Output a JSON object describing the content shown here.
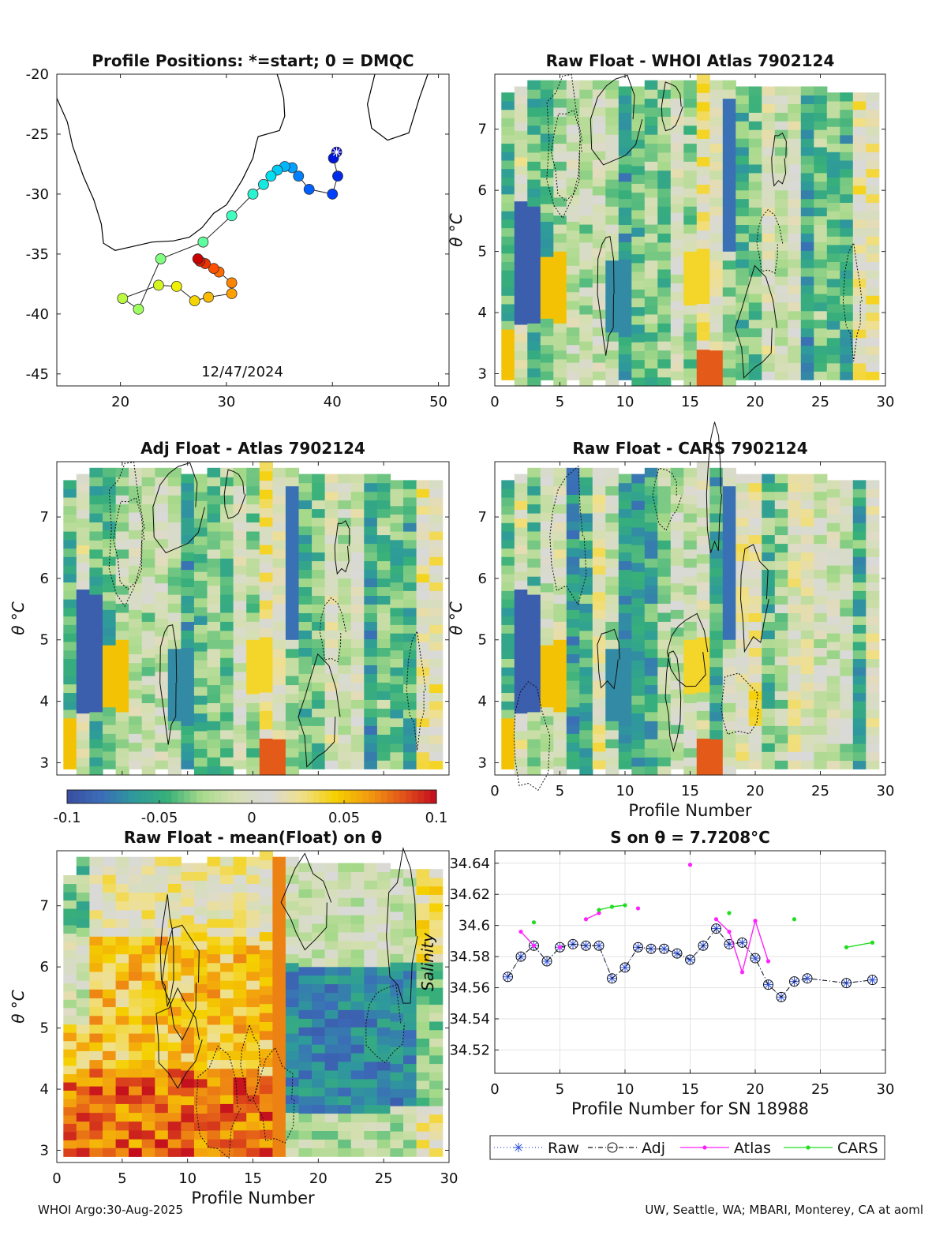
{
  "footer": {
    "left": "WHOI Argo:30-Aug-2025",
    "right": "UW, Seattle, WA; MBARI, Monterey, CA at aoml"
  },
  "colors": {
    "raw": "#3355dd",
    "adj": "#111111",
    "atlas": "#ff22ff",
    "cars": "#22dd22",
    "map_line": "#000000"
  },
  "colormap_stops": [
    "#3a4d9f",
    "#3b6cb8",
    "#2e9a9b",
    "#38b07a",
    "#a6d98a",
    "#d6dfb2",
    "#d9d9d9",
    "#f0e08a",
    "#f5d000",
    "#f29a10",
    "#e2541a",
    "#c20a1e"
  ],
  "chart_data": [
    {
      "id": "map",
      "type": "scatter",
      "title": "Profile Positions: *=start; 0 = DMQC",
      "annotation": "12/47/2024",
      "xlim": [
        14,
        51
      ],
      "ylim": [
        -46,
        -20
      ],
      "xticks": [
        20,
        30,
        40,
        50
      ],
      "yticks": [
        -20,
        -25,
        -30,
        -35,
        -40,
        -45
      ],
      "xtick_labels": [
        "20",
        "30",
        "40",
        "50"
      ],
      "ytick_labels": [
        "-20",
        "-25",
        "-30",
        "-35",
        "-40",
        "-45"
      ],
      "track_lon": [
        40.4,
        40.1,
        40.5,
        40.0,
        37.8,
        36.8,
        36.2,
        35.5,
        34.8,
        34.2,
        33.5,
        32.5,
        30.5,
        27.8,
        23.8,
        21.7,
        20.2,
        23.6,
        25.3,
        27.0,
        28.3,
        30.5,
        30.5,
        29.3,
        28.8,
        28.0,
        27.5,
        27.3
      ],
      "track_lat": [
        -26.5,
        -27.0,
        -28.5,
        -30.0,
        -29.6,
        -28.5,
        -27.8,
        -27.7,
        -28.0,
        -28.5,
        -29.2,
        -30.0,
        -31.8,
        -34.0,
        -35.4,
        -39.6,
        -38.7,
        -37.6,
        -37.7,
        -38.9,
        -38.6,
        -38.3,
        -37.4,
        -36.5,
        -36.2,
        -35.8,
        -35.6,
        -35.4
      ],
      "start_index": 0
    },
    {
      "id": "raw_whoi",
      "type": "heatmap",
      "title": "Raw Float - WHOI Atlas  7902124",
      "xlim": [
        0,
        30
      ],
      "ylim": [
        2.8,
        7.9
      ],
      "xticks": [
        0,
        5,
        10,
        15,
        20,
        25,
        30
      ],
      "yticks": [
        3,
        4,
        5,
        6,
        7
      ],
      "xtick_labels": [
        "0",
        "5",
        "10",
        "15",
        "20",
        "25",
        "30"
      ],
      "ytick_labels": [
        "3",
        "4",
        "5",
        "6",
        "7"
      ],
      "ylabel": "θ °C",
      "xlabel": "",
      "clim": [
        -0.1,
        0.1
      ],
      "profiles": 29,
      "seed": 11,
      "top_theta": [
        7.6,
        7.7,
        7.8,
        7.8,
        7.8,
        7.8,
        7.8,
        7.8,
        7.8,
        7.7,
        7.7,
        7.8,
        7.8,
        7.8,
        7.8,
        7.9,
        7.8,
        7.8,
        7.7,
        7.7,
        7.7,
        7.7,
        7.7,
        7.7,
        7.7,
        7.6,
        7.6,
        7.6,
        7.6
      ],
      "bottom_theta": [
        2.9,
        2.8,
        2.8,
        2.9,
        2.8,
        2.9,
        2.8,
        2.9,
        2.8,
        2.9,
        2.8,
        2.8,
        2.8,
        2.9,
        2.8,
        2.8,
        2.8,
        2.8,
        2.9,
        2.9,
        2.9,
        2.9,
        2.9,
        2.9,
        2.9,
        2.9,
        2.9,
        2.9,
        2.9
      ]
    },
    {
      "id": "adj_atlas",
      "type": "heatmap",
      "title": "Adj Float - Atlas  7902124",
      "xlim": [
        0,
        30
      ],
      "ylim": [
        2.8,
        7.9
      ],
      "xticks": [
        0,
        5,
        10,
        15,
        20,
        25,
        30
      ],
      "yticks": [
        3,
        4,
        5,
        6,
        7
      ],
      "xtick_labels": [],
      "ytick_labels": [
        "3",
        "4",
        "5",
        "6",
        "7"
      ],
      "ylabel": "θ °C",
      "xlabel": "",
      "clim": [
        -0.1,
        0.1
      ],
      "profiles": 29,
      "seed": 11,
      "top_theta": [
        7.6,
        7.7,
        7.8,
        7.8,
        7.8,
        7.8,
        7.8,
        7.8,
        7.8,
        7.7,
        7.7,
        7.8,
        7.8,
        7.8,
        7.8,
        7.9,
        7.8,
        7.8,
        7.7,
        7.7,
        7.7,
        7.7,
        7.7,
        7.7,
        7.7,
        7.6,
        7.6,
        7.6,
        7.6
      ],
      "bottom_theta": [
        2.9,
        2.8,
        2.8,
        2.9,
        2.8,
        2.9,
        2.8,
        2.9,
        2.8,
        2.9,
        2.8,
        2.8,
        2.8,
        2.9,
        2.8,
        2.8,
        2.8,
        2.8,
        2.9,
        2.9,
        2.9,
        2.9,
        2.9,
        2.9,
        2.9,
        2.9,
        2.9,
        2.9,
        2.9
      ]
    },
    {
      "id": "raw_cars",
      "type": "heatmap",
      "title": "Raw Float - CARS  7902124",
      "xlim": [
        0,
        30
      ],
      "ylim": [
        2.8,
        7.9
      ],
      "xticks": [
        0,
        5,
        10,
        15,
        20,
        25,
        30
      ],
      "yticks": [
        3,
        4,
        5,
        6,
        7
      ],
      "xtick_labels": [
        "0",
        "5",
        "10",
        "15",
        "20",
        "25",
        "30"
      ],
      "ytick_labels": [
        "3",
        "4",
        "5",
        "6",
        "7"
      ],
      "ylabel": "θ °C",
      "xlabel": "Profile Number",
      "clim": [
        -0.1,
        0.1
      ],
      "profiles": 29,
      "seed": 23,
      "top_theta": [
        7.6,
        7.7,
        7.8,
        7.8,
        7.8,
        7.8,
        7.8,
        7.8,
        7.8,
        7.7,
        7.7,
        7.8,
        7.8,
        7.8,
        7.8,
        7.9,
        7.8,
        7.8,
        7.7,
        7.7,
        7.7,
        7.7,
        7.7,
        7.7,
        7.7,
        7.6,
        7.6,
        7.6,
        7.6
      ],
      "bottom_theta": [
        2.9,
        2.8,
        2.8,
        2.9,
        2.8,
        2.9,
        2.8,
        2.9,
        2.8,
        2.9,
        2.8,
        2.8,
        2.8,
        2.9,
        2.8,
        2.8,
        2.8,
        2.8,
        2.9,
        2.9,
        2.9,
        2.9,
        2.9,
        2.9,
        2.9,
        2.9,
        2.9,
        2.9,
        2.9
      ]
    },
    {
      "id": "colorbar",
      "type": "heatmap",
      "clim": [
        -0.1,
        0.1
      ],
      "tick_values": [
        -0.1,
        -0.05,
        0,
        0.05,
        0.1
      ],
      "tick_labels": [
        "-0.1",
        "-0.05",
        "0",
        "0.05",
        "0.1"
      ]
    },
    {
      "id": "raw_mean",
      "type": "heatmap",
      "title": "Raw Float - mean(Float) on θ",
      "xlim": [
        0,
        30
      ],
      "ylim": [
        2.8,
        7.9
      ],
      "xticks": [
        0,
        5,
        10,
        15,
        20,
        25,
        30
      ],
      "yticks": [
        3,
        4,
        5,
        6,
        7
      ],
      "xtick_labels": [
        "0",
        "5",
        "10",
        "15",
        "20",
        "25",
        "30"
      ],
      "ytick_labels": [
        "3",
        "4",
        "5",
        "6",
        "7"
      ],
      "ylabel": "θ °C",
      "xlabel": "Profile Number",
      "clim": [
        -0.1,
        0.1
      ],
      "profiles": 29,
      "split_profile": 17.5,
      "seed": 5,
      "top_theta": [
        7.5,
        7.8,
        7.8,
        7.8,
        7.8,
        7.8,
        7.8,
        7.8,
        7.8,
        7.7,
        7.7,
        7.8,
        7.8,
        7.8,
        7.8,
        7.9,
        7.8,
        7.8,
        7.7,
        7.7,
        7.7,
        7.7,
        7.7,
        7.7,
        7.7,
        7.6,
        7.6,
        7.6,
        7.6
      ],
      "bottom_theta": [
        2.9,
        2.9,
        2.9,
        2.9,
        2.9,
        2.9,
        2.9,
        2.9,
        2.9,
        2.9,
        2.9,
        2.9,
        2.9,
        2.9,
        2.9,
        2.9,
        2.9,
        2.9,
        2.9,
        2.9,
        2.9,
        2.9,
        2.9,
        2.9,
        2.9,
        2.9,
        2.9,
        2.9,
        2.9
      ]
    },
    {
      "id": "salinity",
      "type": "line",
      "title": "S on θ = 7.7208°C",
      "xlabel": "Profile Number for SN 18988",
      "ylabel": "Salinity",
      "xlim": [
        0,
        30
      ],
      "ylim": [
        34.505,
        34.648
      ],
      "xticks": [
        0,
        5,
        10,
        15,
        20,
        25,
        30
      ],
      "yticks": [
        34.52,
        34.54,
        34.56,
        34.58,
        34.6,
        34.62,
        34.64
      ],
      "xtick_labels": [
        "0",
        "5",
        "10",
        "15",
        "20",
        "25",
        "30"
      ],
      "ytick_labels": [
        "34.52",
        "34.54",
        "34.56",
        "34.58",
        "34.6",
        "34.62",
        "34.64"
      ],
      "grid": true,
      "legend": [
        "Raw",
        "Adj",
        "Atlas",
        "CARS"
      ],
      "legend_position": "bottom",
      "series": [
        {
          "name": "Raw",
          "x": [
            1,
            2,
            3,
            4,
            5,
            6,
            7,
            8,
            9,
            10,
            11,
            12,
            13,
            14,
            15,
            16,
            17,
            18,
            19,
            20,
            21,
            22,
            23,
            24,
            27,
            29
          ],
          "values": [
            34.567,
            34.58,
            34.587,
            34.577,
            34.586,
            34.588,
            34.587,
            34.587,
            34.566,
            34.573,
            34.586,
            34.585,
            34.585,
            34.582,
            34.578,
            34.587,
            34.598,
            34.588,
            34.589,
            34.579,
            34.562,
            34.554,
            34.564,
            34.566,
            34.563,
            34.565
          ]
        },
        {
          "name": "Adj",
          "x": [
            1,
            2,
            3,
            4,
            5,
            6,
            7,
            8,
            9,
            10,
            11,
            12,
            13,
            14,
            15,
            16,
            17,
            18,
            19,
            20,
            21,
            22,
            23,
            24,
            27,
            29
          ],
          "values": [
            34.567,
            34.58,
            34.587,
            34.577,
            34.586,
            34.588,
            34.587,
            34.587,
            34.566,
            34.573,
            34.586,
            34.585,
            34.585,
            34.582,
            34.578,
            34.587,
            34.598,
            34.588,
            34.589,
            34.579,
            34.562,
            34.554,
            34.564,
            34.566,
            34.563,
            34.565
          ]
        },
        {
          "name": "Atlas",
          "segments": [
            {
              "x": [
                2,
                3
              ],
              "values": [
                34.596,
                34.587
              ]
            },
            {
              "x": [
                5
              ],
              "values": [
                34.586
              ]
            },
            {
              "x": [
                7,
                8
              ],
              "values": [
                34.604,
                34.608
              ]
            },
            {
              "x": [
                11
              ],
              "values": [
                34.611
              ]
            },
            {
              "x": [
                15
              ],
              "values": [
                34.639
              ]
            },
            {
              "x": [
                17,
                18,
                19,
                20,
                21
              ],
              "values": [
                34.604,
                34.596,
                34.57,
                34.603,
                34.577
              ]
            }
          ]
        },
        {
          "name": "CARS",
          "segments": [
            {
              "x": [
                3
              ],
              "values": [
                34.602
              ]
            },
            {
              "x": [
                8,
                9,
                10
              ],
              "values": [
                34.61,
                34.612,
                34.613
              ]
            },
            {
              "x": [
                18
              ],
              "values": [
                34.608
              ]
            },
            {
              "x": [
                23
              ],
              "values": [
                34.604
              ]
            },
            {
              "x": [
                27,
                29
              ],
              "values": [
                34.586,
                34.589
              ]
            }
          ]
        }
      ]
    }
  ]
}
